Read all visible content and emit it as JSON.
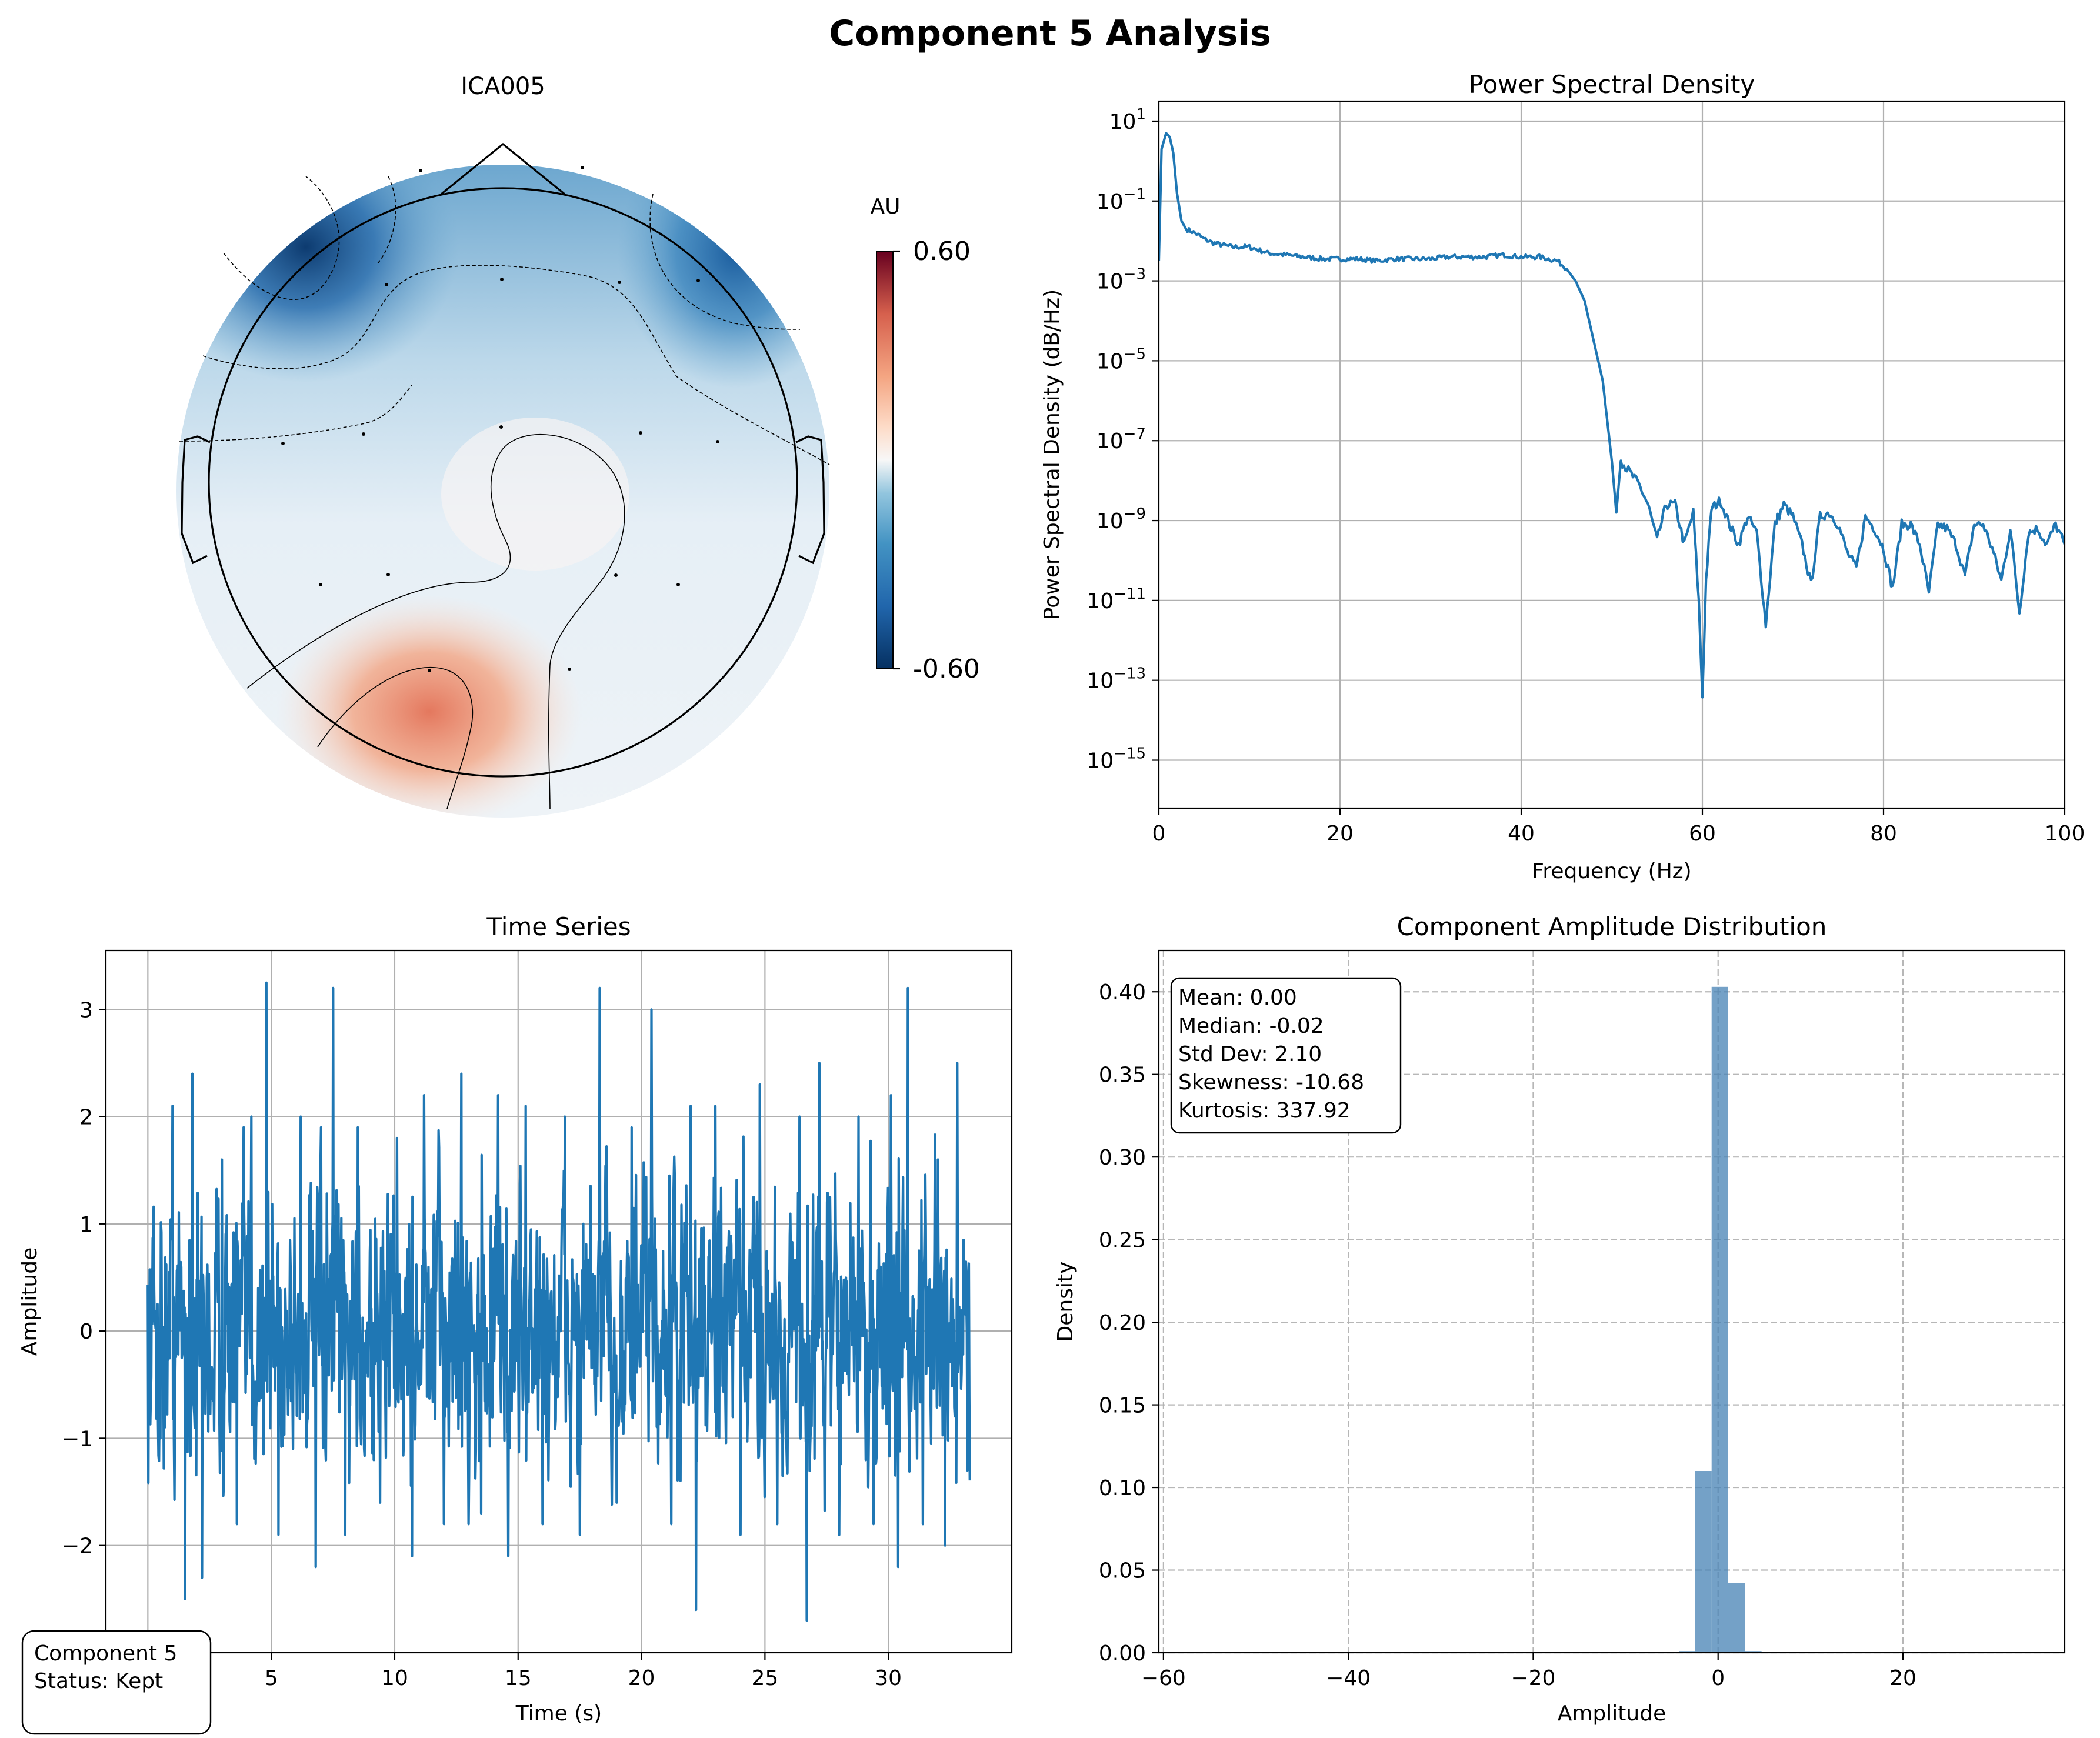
{
  "figure_title": "Component 5 Analysis",
  "topomap": {
    "title": "ICA005",
    "colorbar_label": "AU",
    "colorbar_max": "0.60",
    "colorbar_min": "-0.60",
    "colormap": "RdBu_r",
    "vmin": -0.6,
    "vmax": 0.6
  },
  "status_box": {
    "line1": "Component 5",
    "line2": "Status: Kept"
  },
  "stats_box": {
    "mean": "Mean: 0.00",
    "median": "Median: -0.02",
    "std": "Std Dev: 2.10",
    "skewness": "Skewness: -10.68",
    "kurtosis": "Kurtosis: 337.92"
  },
  "colors": {
    "series": "#1f77b4",
    "bars": "#4682b4"
  },
  "chart_data": [
    {
      "type": "line",
      "title": "Power Spectral Density",
      "xlabel": "Frequency (Hz)",
      "ylabel": "Power Spectral Density (dB/Hz)",
      "xlim": [
        0,
        100
      ],
      "ylim_log10": [
        -16.2,
        1.5
      ],
      "yscale": "log",
      "xticks": [
        "0",
        "20",
        "40",
        "60",
        "80",
        "100"
      ],
      "yticks_exponents": [
        "1",
        "-1",
        "-3",
        "-5",
        "-7",
        "-9",
        "-11",
        "-13",
        "-15"
      ],
      "grid": true,
      "points": [
        [
          0,
          -2.5
        ],
        [
          0.3,
          0.3
        ],
        [
          0.8,
          0.7
        ],
        [
          1.2,
          0.6
        ],
        [
          1.6,
          0.2
        ],
        [
          2.0,
          -0.8
        ],
        [
          2.5,
          -1.5
        ],
        [
          3,
          -1.7
        ],
        [
          4,
          -1.8
        ],
        [
          5,
          -1.95
        ],
        [
          6,
          -2.05
        ],
        [
          8,
          -2.15
        ],
        [
          10,
          -2.15
        ],
        [
          12,
          -2.3
        ],
        [
          14,
          -2.35
        ],
        [
          16,
          -2.4
        ],
        [
          18,
          -2.45
        ],
        [
          20,
          -2.45
        ],
        [
          22,
          -2.45
        ],
        [
          24,
          -2.5
        ],
        [
          26,
          -2.45
        ],
        [
          28,
          -2.45
        ],
        [
          30,
          -2.45
        ],
        [
          32,
          -2.4
        ],
        [
          34,
          -2.4
        ],
        [
          36,
          -2.4
        ],
        [
          38,
          -2.35
        ],
        [
          40,
          -2.4
        ],
        [
          42,
          -2.4
        ],
        [
          44,
          -2.5
        ],
        [
          45,
          -2.7
        ],
        [
          46,
          -3.0
        ],
        [
          47,
          -3.5
        ],
        [
          48,
          -4.5
        ],
        [
          49,
          -5.5
        ],
        [
          50,
          -7.5
        ],
        [
          50.5,
          -8.8
        ],
        [
          51,
          -7.5
        ],
        [
          52,
          -7.8
        ],
        [
          53,
          -8.1
        ],
        [
          54,
          -8.6
        ],
        [
          55,
          -9.5
        ],
        [
          56,
          -8.6
        ],
        [
          57,
          -8.6
        ],
        [
          58,
          -9.6
        ],
        [
          59,
          -8.8
        ],
        [
          59.6,
          -11.0
        ],
        [
          60,
          -13.4
        ],
        [
          60.4,
          -10.5
        ],
        [
          61,
          -8.7
        ],
        [
          62,
          -8.5
        ],
        [
          63,
          -9.1
        ],
        [
          64,
          -9.6
        ],
        [
          65,
          -8.9
        ],
        [
          66,
          -9.3
        ],
        [
          67,
          -11.6
        ],
        [
          68,
          -9.1
        ],
        [
          69,
          -8.6
        ],
        [
          70,
          -8.9
        ],
        [
          71,
          -9.6
        ],
        [
          72,
          -10.6
        ],
        [
          73,
          -8.9
        ],
        [
          74,
          -8.8
        ],
        [
          75,
          -9.1
        ],
        [
          76,
          -9.8
        ],
        [
          77,
          -10.2
        ],
        [
          78,
          -8.9
        ],
        [
          79,
          -9.2
        ],
        [
          80,
          -9.7
        ],
        [
          81,
          -10.7
        ],
        [
          82,
          -9.1
        ],
        [
          83,
          -9.1
        ],
        [
          84,
          -9.6
        ],
        [
          85,
          -10.8
        ],
        [
          86,
          -9.1
        ],
        [
          87,
          -9.2
        ],
        [
          88,
          -9.6
        ],
        [
          89,
          -10.4
        ],
        [
          90,
          -9.1
        ],
        [
          91,
          -9.1
        ],
        [
          92,
          -9.7
        ],
        [
          93,
          -10.5
        ],
        [
          94,
          -9.2
        ],
        [
          95,
          -11.3
        ],
        [
          96,
          -9.3
        ],
        [
          97,
          -9.2
        ],
        [
          98,
          -9.6
        ],
        [
          99,
          -9.1
        ],
        [
          100,
          -9.6
        ]
      ]
    },
    {
      "type": "line",
      "title": "Time Series",
      "xlabel": "Time (s)",
      "ylabel": "Amplitude",
      "xlim": [
        -1.7,
        35.0
      ],
      "ylim": [
        -3.0,
        3.55
      ],
      "xticks": [
        "5",
        "10",
        "15",
        "20",
        "25",
        "30"
      ],
      "yticks": [
        "3",
        "2",
        "1",
        "0",
        "−1",
        "−2"
      ],
      "duration_s": 33.3,
      "grid": true,
      "peaks": [
        [
          0.5,
          -1.0
        ],
        [
          1.0,
          2.1
        ],
        [
          1.5,
          -2.5
        ],
        [
          1.8,
          2.4
        ],
        [
          2.2,
          -2.3
        ],
        [
          3.0,
          1.6
        ],
        [
          3.6,
          -1.8
        ],
        [
          4.2,
          2.0
        ],
        [
          4.8,
          3.25
        ],
        [
          5.3,
          -1.9
        ],
        [
          6.2,
          2.0
        ],
        [
          6.8,
          -2.2
        ],
        [
          7.5,
          3.2
        ],
        [
          8.0,
          -1.9
        ],
        [
          8.5,
          1.9
        ],
        [
          9.4,
          -1.6
        ],
        [
          10.1,
          1.8
        ],
        [
          10.7,
          -2.1
        ],
        [
          11.2,
          2.2
        ],
        [
          12.0,
          -1.8
        ],
        [
          12.7,
          2.4
        ],
        [
          13.5,
          -1.7
        ],
        [
          14.2,
          2.2
        ],
        [
          14.6,
          -2.1
        ],
        [
          15.3,
          2.1
        ],
        [
          16.0,
          -1.8
        ],
        [
          16.9,
          2.0
        ],
        [
          17.5,
          -1.9
        ],
        [
          18.3,
          3.2
        ],
        [
          19.0,
          -1.6
        ],
        [
          19.6,
          1.9
        ],
        [
          20.4,
          3.0
        ],
        [
          21.2,
          -1.8
        ],
        [
          22.0,
          2.1
        ],
        [
          22.2,
          -2.6
        ],
        [
          23.0,
          2.1
        ],
        [
          24.0,
          -1.9
        ],
        [
          24.8,
          2.3
        ],
        [
          25.5,
          -1.8
        ],
        [
          26.4,
          2.0
        ],
        [
          26.7,
          -2.7
        ],
        [
          27.2,
          2.5
        ],
        [
          28.0,
          -1.9
        ],
        [
          28.8,
          2.0
        ],
        [
          29.4,
          -1.8
        ],
        [
          30.1,
          2.2
        ],
        [
          30.4,
          -2.2
        ],
        [
          30.8,
          3.2
        ],
        [
          31.4,
          -1.8
        ],
        [
          32.0,
          1.6
        ],
        [
          32.3,
          -2.0
        ],
        [
          32.8,
          2.5
        ],
        [
          33.2,
          -1.3
        ]
      ]
    },
    {
      "type": "bar",
      "title": "Component Amplitude Distribution",
      "xlabel": "Amplitude",
      "ylabel": "Density",
      "xlim": [
        -60.5,
        37.5
      ],
      "ylim": [
        0,
        0.425
      ],
      "xticks": [
        "−60",
        "−40",
        "−20",
        "0",
        "20"
      ],
      "yticks": [
        "0.40",
        "0.35",
        "0.30",
        "0.25",
        "0.20",
        "0.15",
        "0.10",
        "0.05",
        "0.00"
      ],
      "grid": "dashed",
      "bins": [
        {
          "x0": -4.2,
          "x1": -2.5,
          "density": 0.001
        },
        {
          "x0": -2.5,
          "x1": -0.7,
          "density": 0.11
        },
        {
          "x0": -0.7,
          "x1": 1.1,
          "density": 0.403
        },
        {
          "x0": 1.1,
          "x1": 2.9,
          "density": 0.042
        },
        {
          "x0": 2.9,
          "x1": 4.7,
          "density": 0.001
        }
      ]
    }
  ]
}
